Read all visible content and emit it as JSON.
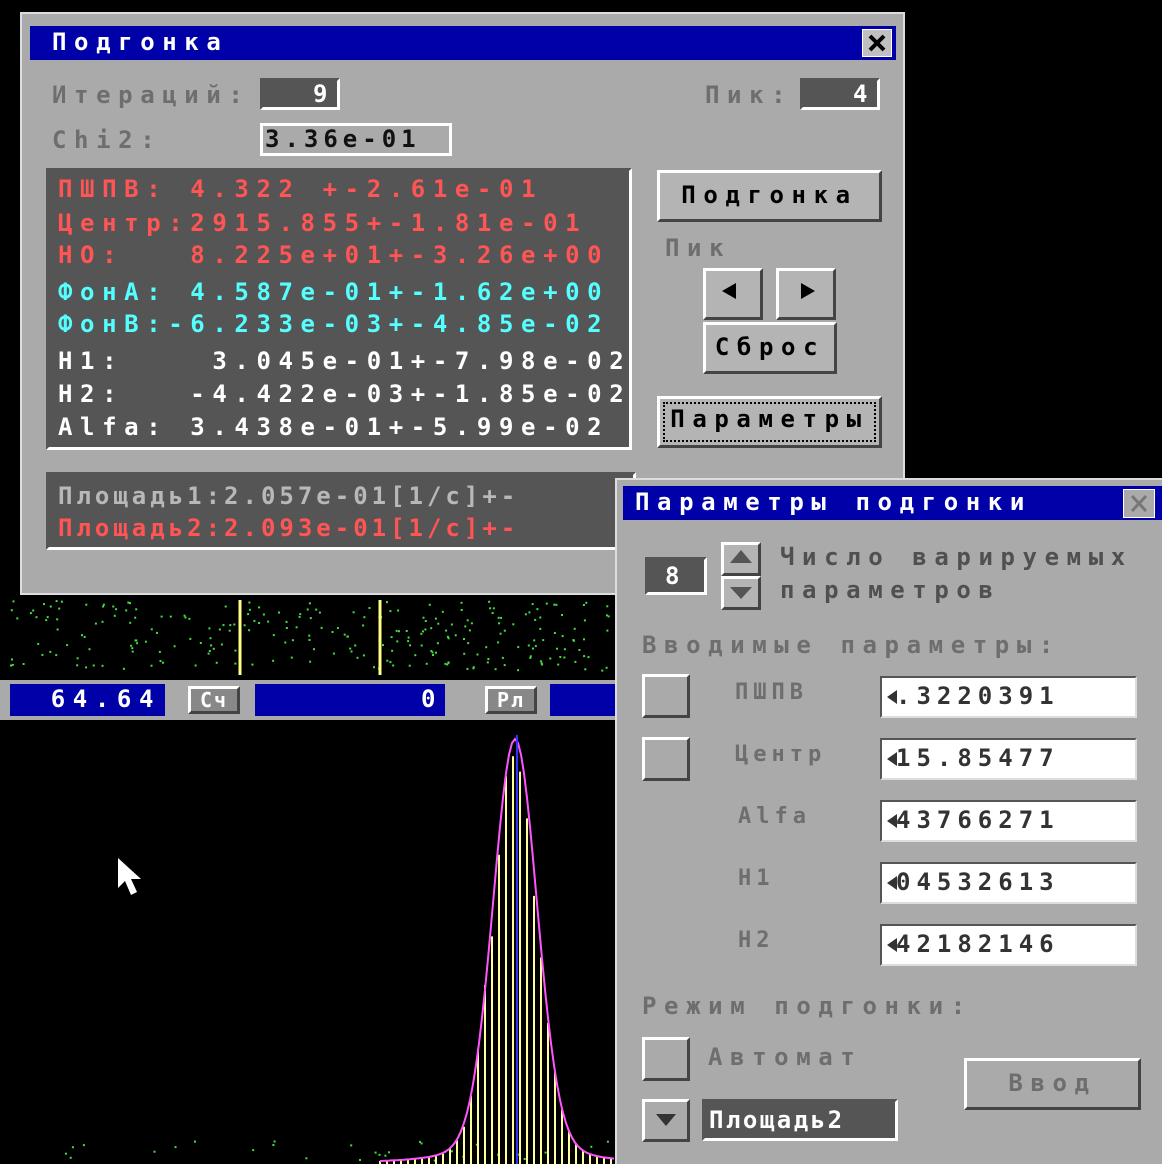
{
  "fit_window": {
    "title": "Подгонка",
    "iterations_label": "Итераций:",
    "iterations": "9",
    "peak_label": "Пик:",
    "peak": "4",
    "chi2_label": "Chi2:",
    "chi2": "3.36e-01",
    "results": [
      {
        "text": "ПШПВ: 4.322 +-2.61e-01",
        "color": "#ff5555"
      },
      {
        "text": "Центр:2915.855+-1.81e-01",
        "color": "#ff5555"
      },
      {
        "text": "НО:   8.225e+01+-3.26e+00",
        "color": "#ff5555"
      },
      {
        "text": "ФонА: 4.587e-01+-1.62e+00",
        "color": "#55ffff"
      },
      {
        "text": "ФонВ:-6.233e-03+-4.85e-02",
        "color": "#55ffff"
      },
      {
        "text": "Н1:    3.045e-01+-7.98e-02",
        "color": "#ffffff"
      },
      {
        "text": "Н2:   -4.422e-03+-1.85e-02",
        "color": "#ffffff"
      },
      {
        "text": "Alfa: 3.438e-01+-5.99e-02",
        "color": "#ffffff"
      }
    ],
    "fit_button": "Подгонка",
    "peak_nav_label": "Пик",
    "reset_button": "Сброс",
    "params_button": "Параметры",
    "areas": [
      {
        "text": "Площадь1:2.057e-01[1/c]+-",
        "color": "#b8b8b8"
      },
      {
        "text": "Площадь2:2.093e-01[1/c]+-",
        "color": "#ff5555"
      }
    ]
  },
  "status_bar": {
    "position": "64.64",
    "count_label": "Сч",
    "count": "0",
    "mode_label": "Рл"
  },
  "params_window": {
    "title": "Параметры подгонки",
    "varied_count": "8",
    "varied_label_1": "Число варируемых",
    "varied_label_2": "параметров",
    "input_header": "Вводимые параметры:",
    "inputs": [
      {
        "name": "ПШПВ",
        "value": ".3220391"
      },
      {
        "name": "Центр",
        "value": "15.85477"
      },
      {
        "name": "Alfa",
        "value": "43766271"
      },
      {
        "name": "H1",
        "value": "04532613"
      },
      {
        "name": "H2",
        "value": "42182146"
      }
    ],
    "mode_header": "Режим подгонки:",
    "auto_label": "Автомат",
    "enter_button": "Ввод",
    "area_select": "Площадь2"
  }
}
